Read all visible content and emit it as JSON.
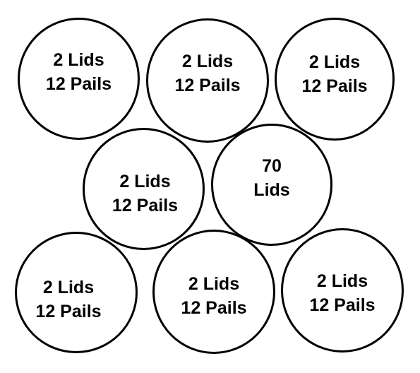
{
  "containers": [
    {
      "line1": "2  Lids",
      "line2": "12  Pails"
    },
    {
      "line1": "2  Lids",
      "line2": "12  Pails"
    },
    {
      "line1": "2  Lids",
      "line2": "12  Pails"
    },
    {
      "line1": "2  Lids",
      "line2": "12  Pails"
    },
    {
      "line1": "70",
      "line2": "Lids"
    },
    {
      "line1": "2  Lids",
      "line2": "12  Pails"
    },
    {
      "line1": "2  Lids",
      "line2": "12  Pails"
    },
    {
      "line1": "2  Lids",
      "line2": "12  Pails"
    }
  ]
}
